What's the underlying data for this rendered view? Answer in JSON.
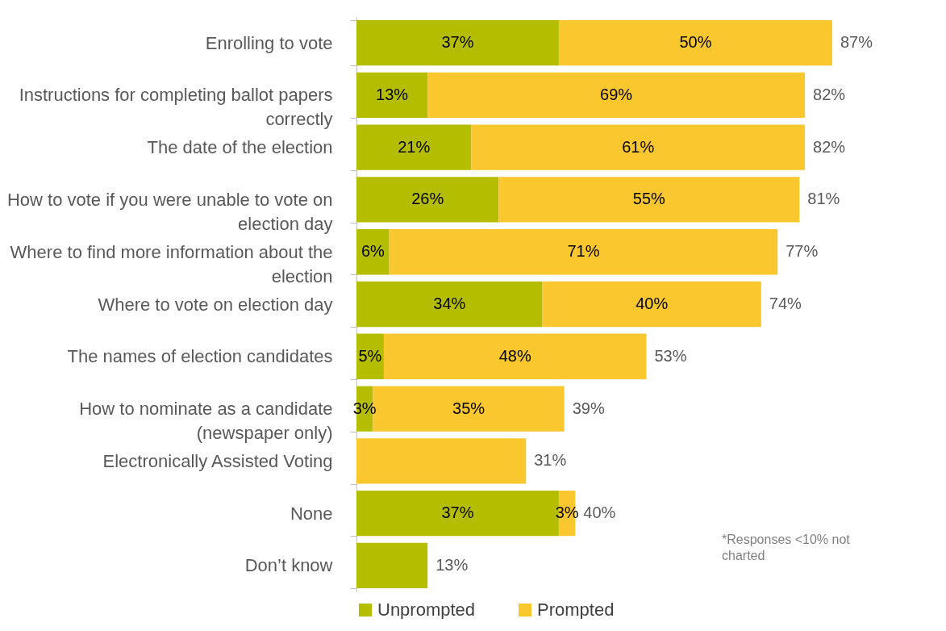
{
  "chart_data": {
    "type": "bar",
    "orientation": "horizontal",
    "stacked": true,
    "categories": [
      "Enrolling to vote",
      "Instructions for completing ballot papers correctly",
      "The date of the election",
      "How to vote if you were unable to vote on election day",
      "Where to find more information about the election",
      "Where to vote on election day",
      "The names of election candidates",
      "How to nominate as a candidate (newspaper only)",
      "Electronically Assisted Voting",
      "None",
      "Don’t know"
    ],
    "series": [
      {
        "name": "Unprompted",
        "color": "#b5bd00",
        "values": [
          37,
          13,
          21,
          26,
          6,
          34,
          5,
          3,
          null,
          37,
          13
        ],
        "value_labels": [
          "37%",
          "13%",
          "21%",
          "26%",
          "6%",
          "34%",
          "5%",
          "3%",
          null,
          "37%",
          null
        ]
      },
      {
        "name": "Prompted",
        "color": "#fac72f",
        "values": [
          50,
          69,
          61,
          55,
          71,
          40,
          48,
          35,
          31,
          3,
          null
        ],
        "value_labels": [
          "50%",
          "69%",
          "61%",
          "55%",
          "71%",
          "40%",
          "48%",
          "35%",
          null,
          "3%",
          null
        ]
      }
    ],
    "totals": [
      "87%",
      "82%",
      "82%",
      "81%",
      "77%",
      "74%",
      "53%",
      "39%",
      "31%",
      "40%",
      "13%"
    ],
    "legend": "bottom",
    "grid": false,
    "annotations": [
      "*Responses <10% not charted"
    ]
  }
}
